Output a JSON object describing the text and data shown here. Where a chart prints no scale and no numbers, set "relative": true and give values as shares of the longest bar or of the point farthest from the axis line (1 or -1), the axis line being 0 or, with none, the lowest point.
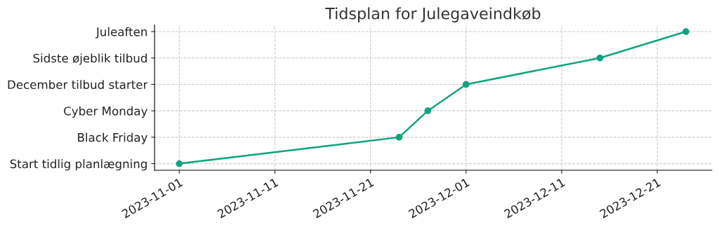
{
  "chart_data": {
    "type": "line",
    "title": "Tidsplan for Julegaveindkøb",
    "relative": true,
    "x": [
      "2023-11-01",
      "2023-11-24",
      "2023-11-27",
      "2023-12-01",
      "2023-12-15",
      "2023-12-24"
    ],
    "y_categories": [
      "Juleaften",
      "Sidste øjeblik tilbud",
      "December tilbud starter",
      "Cyber Monday",
      "Black Friday",
      "Start tidlig planlægning"
    ],
    "series": [
      {
        "color": "#10a37f",
        "values": [
          0,
          0.2,
          0.4,
          0.6,
          0.8,
          1
        ]
      }
    ],
    "xlim": [
      "2023-10-29T10:00",
      "2023-12-26T17:00"
    ],
    "xticks": [
      "2023-11-01",
      "2023-11-11",
      "2023-11-21",
      "2023-12-01",
      "2023-12-11",
      "2023-12-21"
    ],
    "grid": true,
    "marker": "circle",
    "line_style": "solid"
  }
}
